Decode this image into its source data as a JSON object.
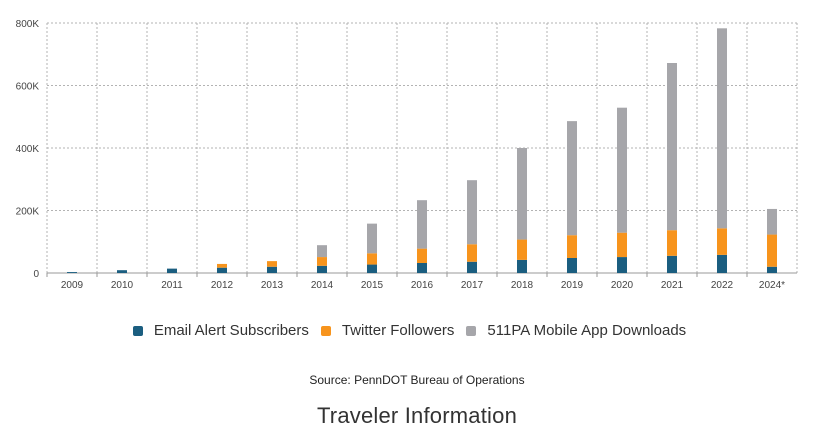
{
  "chart_data": {
    "type": "bar",
    "stacked": true,
    "categories": [
      "2009",
      "2010",
      "2011",
      "2012",
      "2013",
      "2014",
      "2015",
      "2016",
      "2017",
      "2018",
      "2019",
      "2020",
      "2021",
      "2022",
      "2024*"
    ],
    "series": [
      {
        "name": "Email Alert Subscribers",
        "color": "#1b5e80",
        "values": [
          3000,
          9000,
          14000,
          17000,
          20000,
          23000,
          27000,
          32000,
          36000,
          42000,
          48000,
          51000,
          55000,
          58000,
          20000
        ]
      },
      {
        "name": "Twitter Followers",
        "color": "#f7941d",
        "values": [
          0,
          0,
          0,
          12000,
          18000,
          28000,
          36000,
          46000,
          56000,
          65000,
          73000,
          78000,
          82000,
          85000,
          103000
        ]
      },
      {
        "name": "511PA Mobile App Downloads",
        "color": "#a6a6aa",
        "values": [
          0,
          0,
          0,
          0,
          0,
          38000,
          95000,
          155000,
          205000,
          293000,
          365000,
          400000,
          535000,
          640000,
          82000
        ]
      }
    ],
    "y_ticks": [
      "0",
      "200K",
      "400K",
      "600K",
      "800K"
    ],
    "ylim": [
      0,
      800000
    ],
    "grid": true,
    "legend_position": "bottom"
  },
  "source_text": "Source: PennDOT Bureau of Operations",
  "section_title": "Traveler Information"
}
